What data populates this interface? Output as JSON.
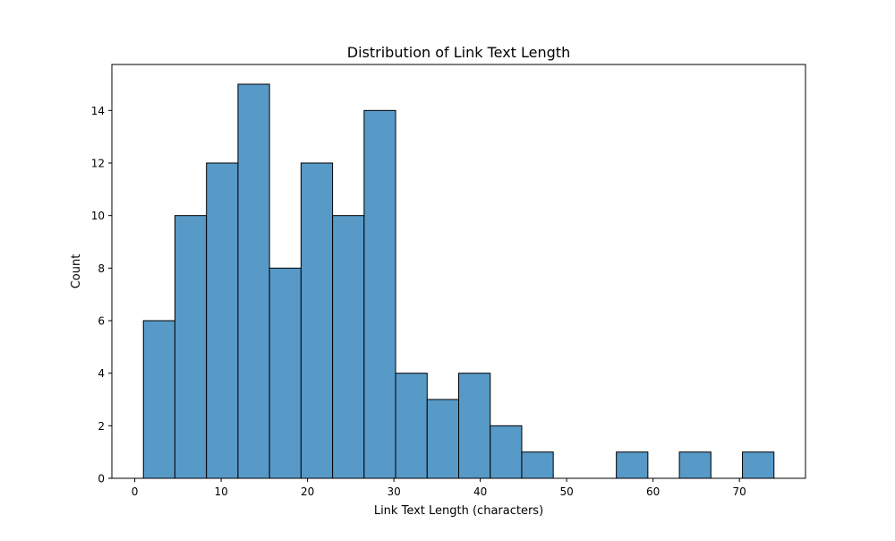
{
  "chart_data": {
    "type": "bar",
    "title": "Distribution of Link Text Length",
    "xlabel": "Link Text Length (characters)",
    "ylabel": "Count",
    "bin_edges": [
      1.0,
      4.65,
      8.3,
      11.95,
      15.6,
      19.25,
      22.9,
      26.55,
      30.2,
      33.85,
      37.5,
      41.15,
      44.8,
      48.45,
      52.1,
      55.75,
      59.4,
      63.05,
      66.7,
      70.35,
      74.0
    ],
    "values": [
      6,
      10,
      12,
      15,
      8,
      12,
      10,
      14,
      4,
      3,
      4,
      2,
      1,
      0,
      0,
      1,
      0,
      1,
      0,
      1
    ],
    "xlim": [
      -2.65,
      77.65
    ],
    "ylim": [
      0,
      15.75
    ],
    "xticks": [
      0,
      10,
      20,
      30,
      40,
      50,
      60,
      70
    ],
    "yticks": [
      0,
      2,
      4,
      6,
      8,
      10,
      12,
      14
    ],
    "grid": false,
    "bar_color": "#5799c7",
    "edge_color": "#000000"
  }
}
